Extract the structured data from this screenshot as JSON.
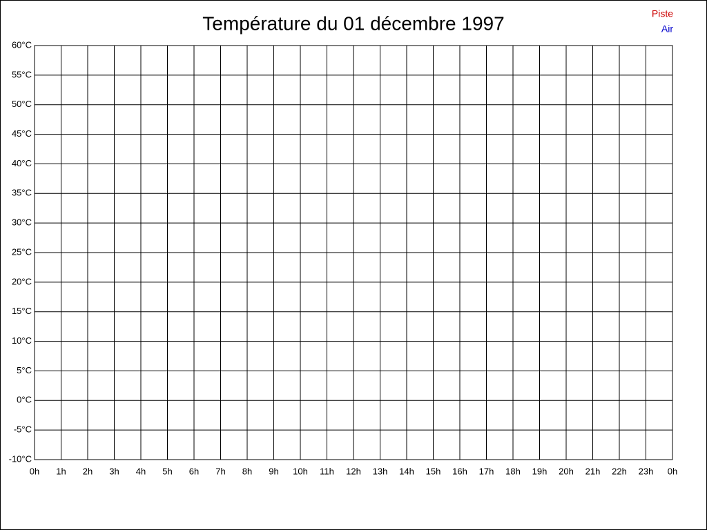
{
  "chart_data": {
    "type": "line",
    "title": "Température du 01 décembre 1997",
    "categories": [
      "0h",
      "1h",
      "2h",
      "3h",
      "4h",
      "5h",
      "6h",
      "7h",
      "8h",
      "9h",
      "10h",
      "11h",
      "12h",
      "13h",
      "14h",
      "15h",
      "16h",
      "17h",
      "18h",
      "19h",
      "20h",
      "21h",
      "22h",
      "23h",
      "0h"
    ],
    "series": [
      {
        "name": "Piste",
        "color": "#cc0000",
        "values": [
          null,
          null,
          null,
          null,
          null,
          null,
          null,
          null,
          null,
          null,
          null,
          null,
          null,
          null,
          null,
          null,
          null,
          null,
          null,
          null,
          null,
          null,
          null,
          null,
          null
        ]
      },
      {
        "name": "Air",
        "color": "#0000cc",
        "values": [
          null,
          null,
          null,
          null,
          null,
          null,
          null,
          null,
          null,
          null,
          null,
          null,
          null,
          null,
          null,
          null,
          null,
          null,
          null,
          null,
          null,
          null,
          null,
          null,
          null
        ]
      }
    ],
    "ylim": [
      -10,
      60
    ],
    "yticks": [
      {
        "value": -10,
        "label": "-10°C"
      },
      {
        "value": -5,
        "label": "-5°C"
      },
      {
        "value": 0,
        "label": "0°C"
      },
      {
        "value": 5,
        "label": "5°C"
      },
      {
        "value": 10,
        "label": "10°C"
      },
      {
        "value": 15,
        "label": "15°C"
      },
      {
        "value": 20,
        "label": "20°C"
      },
      {
        "value": 25,
        "label": "25°C"
      },
      {
        "value": 30,
        "label": "30°C"
      },
      {
        "value": 35,
        "label": "35°C"
      },
      {
        "value": 40,
        "label": "40°C"
      },
      {
        "value": 45,
        "label": "45°C"
      },
      {
        "value": 50,
        "label": "50°C"
      },
      {
        "value": 55,
        "label": "55°C"
      },
      {
        "value": 60,
        "label": "60°C"
      }
    ],
    "grid": true,
    "legend": "top-right"
  }
}
